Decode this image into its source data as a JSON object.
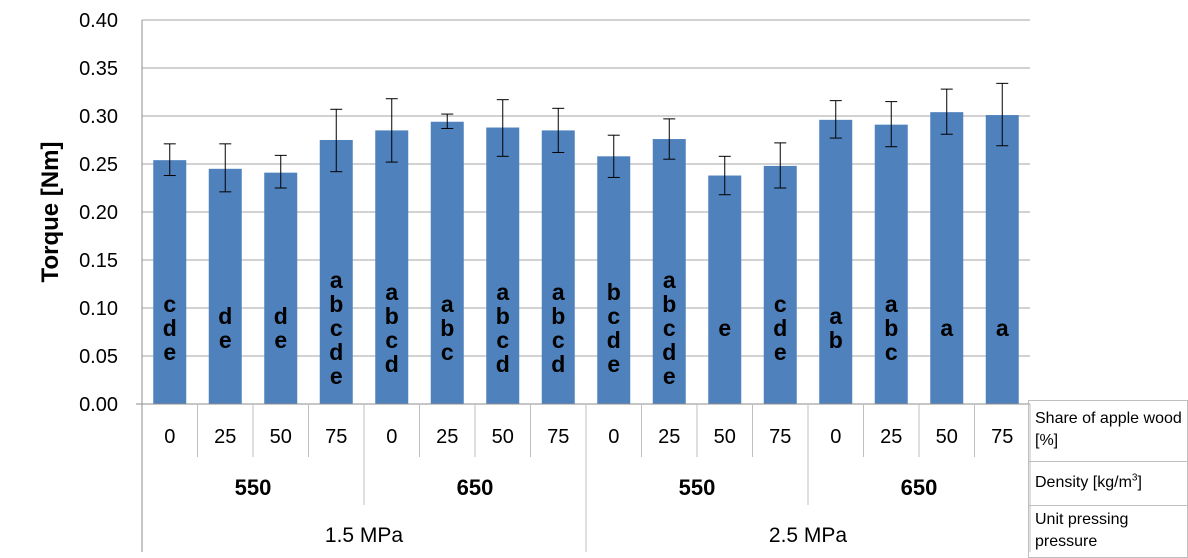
{
  "chart_data": {
    "type": "bar",
    "ylabel": "Torque [Nm]",
    "ylim": [
      0,
      0.4
    ],
    "yticks": [
      "0.00",
      "0.05",
      "0.10",
      "0.15",
      "0.20",
      "0.25",
      "0.30",
      "0.35",
      "0.40"
    ],
    "grid": true,
    "bar_color": "#4f81bd",
    "categories": [
      "0",
      "25",
      "50",
      "75",
      "0",
      "25",
      "50",
      "75",
      "0",
      "25",
      "50",
      "75",
      "0",
      "25",
      "50",
      "75"
    ],
    "values": [
      0.254,
      0.245,
      0.241,
      0.275,
      0.285,
      0.294,
      0.288,
      0.285,
      0.258,
      0.276,
      0.238,
      0.248,
      0.296,
      0.291,
      0.304,
      0.301
    ],
    "error_low": [
      0.238,
      0.221,
      0.225,
      0.242,
      0.252,
      0.287,
      0.258,
      0.262,
      0.236,
      0.255,
      0.218,
      0.225,
      0.277,
      0.268,
      0.281,
      0.269
    ],
    "error_high": [
      0.271,
      0.271,
      0.259,
      0.307,
      0.318,
      0.302,
      0.317,
      0.308,
      0.28,
      0.297,
      0.258,
      0.272,
      0.316,
      0.315,
      0.328,
      0.334
    ],
    "significance_letters": [
      "cde",
      "de",
      "de",
      "abcde",
      "abcd",
      "abc",
      "abcd",
      "abcd",
      "bcde",
      "abcde",
      "e",
      "cde",
      "ab",
      "abc",
      "a",
      "a"
    ],
    "density_groups": [
      "550",
      "650",
      "550",
      "650"
    ],
    "pressure_groups": [
      "1.5 MPa",
      "2.5 MPa"
    ]
  },
  "legend": {
    "share": "Share of apple wood [%]",
    "density": "Density [kg/m",
    "density_sup": "3",
    "density_end": "]",
    "pressure": "Unit pressing pressure"
  }
}
